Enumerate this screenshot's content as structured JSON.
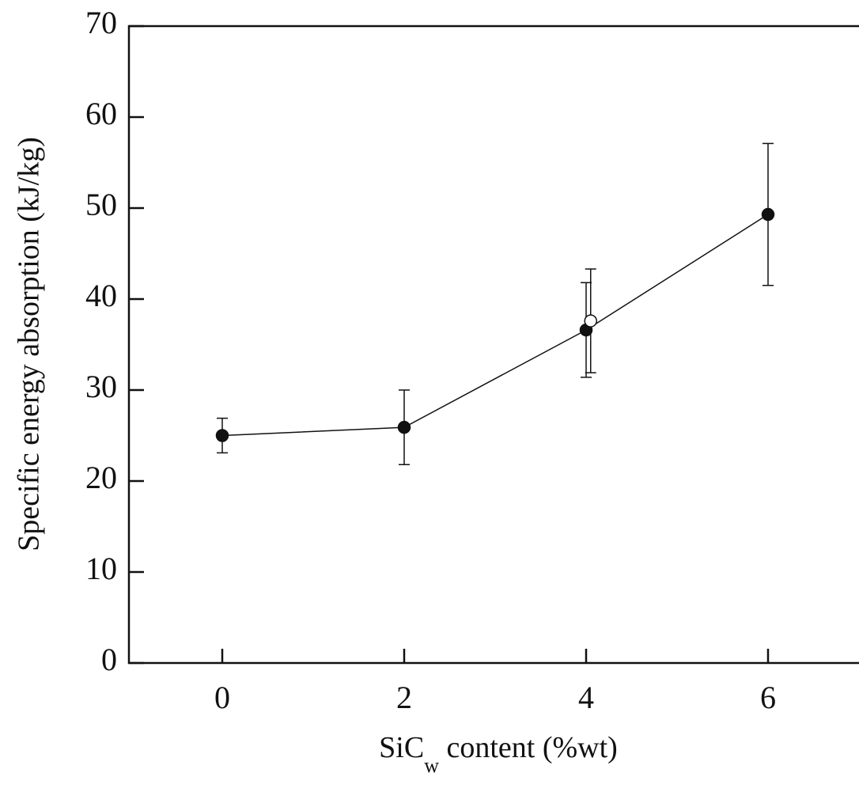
{
  "chart_data": {
    "type": "scatter",
    "xlabel": [
      "SiC",
      "w",
      " content (%wt)"
    ],
    "ylabel": "Specific energy absorption (kJ/kg)",
    "xlim": [
      -1,
      7
    ],
    "ylim": [
      0,
      70
    ],
    "xticks": [
      0,
      2,
      4,
      6
    ],
    "yticks": [
      0,
      10,
      20,
      30,
      40,
      50,
      60,
      70
    ],
    "series": [
      {
        "color": "#111111",
        "marker": "filled",
        "line": true,
        "x": [
          0,
          2,
          4,
          6
        ],
        "values": [
          25.0,
          25.9,
          36.6,
          49.3
        ],
        "errors": [
          1.9,
          4.1,
          5.2,
          7.8
        ]
      },
      {
        "color": "#111111",
        "marker": "open",
        "line": false,
        "x": [
          4.05
        ],
        "values": [
          37.6
        ],
        "errors": [
          5.7
        ]
      }
    ]
  }
}
